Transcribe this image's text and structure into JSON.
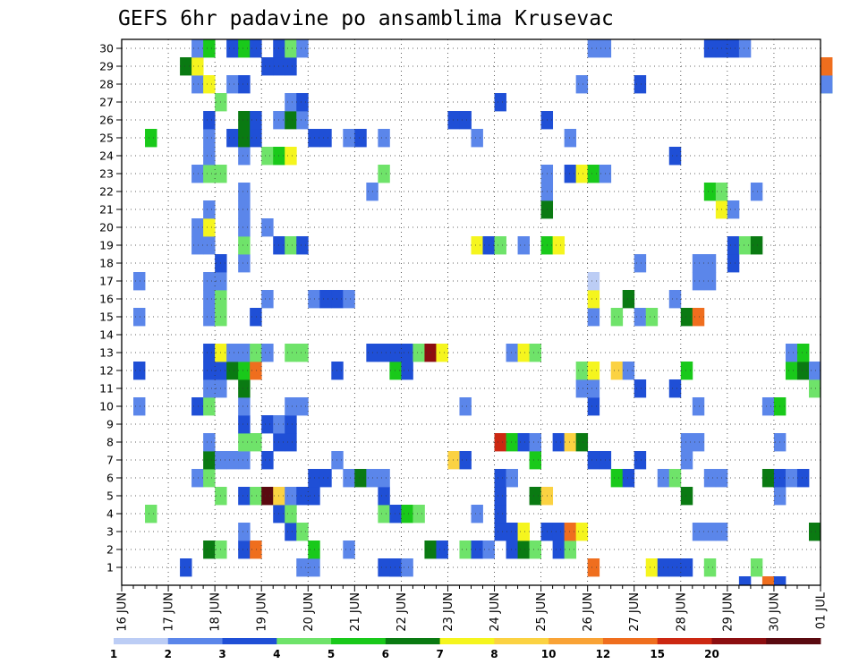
{
  "chart_data": {
    "type": "heatmap",
    "title": "GEFS 6hr padavine po ansamblima Krusevac",
    "xlabel": "",
    "ylabel": "",
    "y_ticks": [
      "1",
      "2",
      "3",
      "4",
      "5",
      "6",
      "7",
      "8",
      "9",
      "10",
      "11",
      "12",
      "13",
      "14",
      "15",
      "16",
      "17",
      "18",
      "19",
      "20",
      "21",
      "22",
      "23",
      "24",
      "25",
      "26",
      "27",
      "28",
      "29",
      "30"
    ],
    "x_ticks": [
      "16 JUN",
      "17 JUN",
      "18 JUN",
      "19 JUN",
      "20 JUN",
      "21 JUN",
      "22 JUN",
      "23 JUN",
      "24 JUN",
      "25 JUN",
      "26 JUN",
      "27 JUN",
      "28 JUN",
      "29 JUN",
      "30 JUN",
      "01 JUL"
    ],
    "grid": true,
    "steps_per_day": 4,
    "colorbar": {
      "labels": [
        "1",
        "2",
        "3",
        "4",
        "5",
        "6",
        "7",
        "8",
        "10",
        "12",
        "15",
        "20"
      ],
      "colors": [
        "#bccdf5",
        "#5b86ea",
        "#1f4fd6",
        "#6fe36a",
        "#19c91a",
        "#0a7a12",
        "#f5f51e",
        "#fbd242",
        "#f9a336",
        "#ef6e1e",
        "#cc2812",
        "#8c0e10",
        "#5a0a10"
      ]
    },
    "cells": [
      [
        5,
        1,
        2
      ],
      [
        15,
        1,
        1
      ],
      [
        16,
        1,
        1
      ],
      [
        22,
        1,
        2
      ],
      [
        23,
        1,
        2
      ],
      [
        23,
        1,
        2
      ],
      [
        24,
        1,
        1
      ],
      [
        40,
        1,
        9
      ],
      [
        45,
        1,
        6
      ],
      [
        46,
        1,
        2
      ],
      [
        47,
        1,
        2
      ],
      [
        48,
        1,
        2
      ],
      [
        50,
        1,
        3
      ],
      [
        54,
        1,
        3
      ],
      [
        7,
        2,
        5
      ],
      [
        8,
        2,
        3
      ],
      [
        10,
        2,
        2
      ],
      [
        11,
        2,
        9
      ],
      [
        16,
        2,
        4
      ],
      [
        19,
        2,
        1
      ],
      [
        26,
        2,
        5
      ],
      [
        27,
        2,
        2
      ],
      [
        29,
        2,
        3
      ],
      [
        30,
        2,
        2
      ],
      [
        31,
        2,
        1
      ],
      [
        33,
        2,
        2
      ],
      [
        34,
        2,
        5
      ],
      [
        35,
        2,
        3
      ],
      [
        37,
        2,
        2
      ],
      [
        38,
        2,
        3
      ],
      [
        10,
        3,
        1
      ],
      [
        14,
        3,
        2
      ],
      [
        15,
        3,
        3
      ],
      [
        32,
        3,
        2
      ],
      [
        33,
        3,
        2
      ],
      [
        34,
        3,
        6
      ],
      [
        36,
        3,
        2
      ],
      [
        37,
        3,
        2
      ],
      [
        38,
        3,
        9
      ],
      [
        39,
        3,
        6
      ],
      [
        49,
        3,
        1
      ],
      [
        50,
        3,
        1
      ],
      [
        51,
        3,
        1
      ],
      [
        59,
        3,
        5
      ],
      [
        2,
        4,
        3
      ],
      [
        13,
        4,
        2
      ],
      [
        14,
        4,
        3
      ],
      [
        22,
        4,
        3
      ],
      [
        23,
        4,
        2
      ],
      [
        24,
        4,
        4
      ],
      [
        25,
        4,
        3
      ],
      [
        30,
        4,
        1
      ],
      [
        32,
        4,
        2
      ],
      [
        8,
        5,
        3
      ],
      [
        10,
        5,
        2
      ],
      [
        11,
        5,
        3
      ],
      [
        12,
        5,
        12
      ],
      [
        13,
        5,
        7
      ],
      [
        14,
        5,
        1
      ],
      [
        15,
        5,
        2
      ],
      [
        16,
        5,
        2
      ],
      [
        22,
        5,
        2
      ],
      [
        32,
        5,
        2
      ],
      [
        35,
        5,
        5
      ],
      [
        36,
        5,
        7
      ],
      [
        48,
        5,
        5
      ],
      [
        56,
        5,
        1
      ],
      [
        6,
        6,
        1
      ],
      [
        7,
        6,
        3
      ],
      [
        16,
        6,
        2
      ],
      [
        17,
        6,
        2
      ],
      [
        19,
        6,
        1
      ],
      [
        20,
        6,
        5
      ],
      [
        21,
        6,
        1
      ],
      [
        22,
        6,
        1
      ],
      [
        32,
        6,
        2
      ],
      [
        33,
        6,
        1
      ],
      [
        42,
        6,
        4
      ],
      [
        43,
        6,
        2
      ],
      [
        46,
        6,
        1
      ],
      [
        47,
        6,
        3
      ],
      [
        50,
        6,
        1
      ],
      [
        51,
        6,
        1
      ],
      [
        55,
        6,
        5
      ],
      [
        56,
        6,
        2
      ],
      [
        57,
        6,
        1
      ],
      [
        58,
        6,
        2
      ],
      [
        7,
        7,
        5
      ],
      [
        8,
        7,
        1
      ],
      [
        9,
        7,
        1
      ],
      [
        10,
        7,
        1
      ],
      [
        12,
        7,
        2
      ],
      [
        18,
        7,
        1
      ],
      [
        28,
        7,
        7
      ],
      [
        29,
        7,
        2
      ],
      [
        35,
        7,
        4
      ],
      [
        40,
        7,
        2
      ],
      [
        41,
        7,
        2
      ],
      [
        44,
        7,
        2
      ],
      [
        48,
        7,
        1
      ],
      [
        7,
        8,
        1
      ],
      [
        10,
        8,
        3
      ],
      [
        11,
        8,
        3
      ],
      [
        13,
        8,
        2
      ],
      [
        14,
        8,
        2
      ],
      [
        32,
        8,
        10
      ],
      [
        33,
        8,
        4
      ],
      [
        34,
        8,
        2
      ],
      [
        35,
        8,
        1
      ],
      [
        37,
        8,
        2
      ],
      [
        38,
        8,
        7
      ],
      [
        39,
        8,
        5
      ],
      [
        48,
        8,
        1
      ],
      [
        49,
        8,
        1
      ],
      [
        56,
        8,
        1
      ],
      [
        10,
        9,
        2
      ],
      [
        12,
        9,
        2
      ],
      [
        13,
        9,
        1
      ],
      [
        14,
        9,
        2
      ],
      [
        1,
        10,
        1
      ],
      [
        6,
        10,
        2
      ],
      [
        7,
        10,
        3
      ],
      [
        10,
        10,
        1
      ],
      [
        14,
        10,
        1
      ],
      [
        15,
        10,
        1
      ],
      [
        29,
        10,
        1
      ],
      [
        40,
        10,
        2
      ],
      [
        49,
        10,
        1
      ],
      [
        55,
        10,
        1
      ],
      [
        56,
        10,
        4
      ],
      [
        7,
        11,
        1
      ],
      [
        8,
        11,
        1
      ],
      [
        10,
        11,
        5
      ],
      [
        39,
        11,
        1
      ],
      [
        40,
        11,
        1
      ],
      [
        44,
        11,
        2
      ],
      [
        47,
        11,
        2
      ],
      [
        59,
        11,
        3
      ],
      [
        1,
        12,
        2
      ],
      [
        7,
        12,
        2
      ],
      [
        8,
        12,
        2
      ],
      [
        9,
        12,
        5
      ],
      [
        10,
        12,
        4
      ],
      [
        11,
        12,
        9
      ],
      [
        18,
        12,
        2
      ],
      [
        23,
        12,
        4
      ],
      [
        24,
        12,
        2
      ],
      [
        39,
        12,
        3
      ],
      [
        40,
        12,
        6
      ],
      [
        42,
        12,
        7
      ],
      [
        43,
        12,
        1
      ],
      [
        48,
        12,
        4
      ],
      [
        57,
        12,
        4
      ],
      [
        58,
        12,
        5
      ],
      [
        59,
        12,
        1
      ],
      [
        7,
        13,
        2
      ],
      [
        8,
        13,
        6
      ],
      [
        9,
        13,
        1
      ],
      [
        10,
        13,
        1
      ],
      [
        11,
        13,
        3
      ],
      [
        12,
        13,
        1
      ],
      [
        14,
        13,
        3
      ],
      [
        15,
        13,
        3
      ],
      [
        21,
        13,
        2
      ],
      [
        22,
        13,
        2
      ],
      [
        23,
        13,
        2
      ],
      [
        24,
        13,
        2
      ],
      [
        25,
        13,
        3
      ],
      [
        26,
        13,
        11
      ],
      [
        27,
        13,
        6
      ],
      [
        33,
        13,
        1
      ],
      [
        34,
        13,
        6
      ],
      [
        35,
        13,
        3
      ],
      [
        57,
        13,
        1
      ],
      [
        58,
        13,
        4
      ],
      [
        1,
        15,
        1
      ],
      [
        7,
        15,
        1
      ],
      [
        8,
        15,
        3
      ],
      [
        11,
        15,
        2
      ],
      [
        40,
        15,
        1
      ],
      [
        42,
        15,
        3
      ],
      [
        44,
        15,
        1
      ],
      [
        45,
        15,
        3
      ],
      [
        48,
        15,
        5
      ],
      [
        49,
        15,
        9
      ],
      [
        7,
        16,
        1
      ],
      [
        8,
        16,
        3
      ],
      [
        12,
        16,
        1
      ],
      [
        16,
        16,
        1
      ],
      [
        17,
        16,
        2
      ],
      [
        18,
        16,
        2
      ],
      [
        19,
        16,
        1
      ],
      [
        40,
        16,
        6
      ],
      [
        43,
        16,
        5
      ],
      [
        47,
        16,
        1
      ],
      [
        1,
        17,
        1
      ],
      [
        7,
        17,
        1
      ],
      [
        8,
        17,
        1
      ],
      [
        40,
        17,
        0
      ],
      [
        49,
        17,
        1
      ],
      [
        50,
        17,
        1
      ],
      [
        8,
        18,
        2
      ],
      [
        10,
        18,
        1
      ],
      [
        44,
        18,
        1
      ],
      [
        49,
        18,
        1
      ],
      [
        50,
        18,
        1
      ],
      [
        52,
        18,
        2
      ],
      [
        6,
        19,
        1
      ],
      [
        7,
        19,
        1
      ],
      [
        10,
        19,
        3
      ],
      [
        13,
        19,
        2
      ],
      [
        14,
        19,
        3
      ],
      [
        15,
        19,
        2
      ],
      [
        30,
        19,
        6
      ],
      [
        31,
        19,
        2
      ],
      [
        32,
        19,
        3
      ],
      [
        34,
        19,
        1
      ],
      [
        36,
        19,
        4
      ],
      [
        37,
        19,
        6
      ],
      [
        52,
        19,
        2
      ],
      [
        53,
        19,
        3
      ],
      [
        54,
        19,
        5
      ],
      [
        6,
        20,
        1
      ],
      [
        7,
        20,
        6
      ],
      [
        10,
        20,
        1
      ],
      [
        12,
        20,
        1
      ],
      [
        7,
        21,
        1
      ],
      [
        10,
        21,
        1
      ],
      [
        36,
        21,
        5
      ],
      [
        51,
        21,
        6
      ],
      [
        52,
        21,
        1
      ],
      [
        10,
        22,
        1
      ],
      [
        21,
        22,
        1
      ],
      [
        36,
        22,
        1
      ],
      [
        50,
        22,
        4
      ],
      [
        51,
        22,
        3
      ],
      [
        54,
        22,
        1
      ],
      [
        6,
        23,
        1
      ],
      [
        7,
        23,
        3
      ],
      [
        8,
        23,
        3
      ],
      [
        22,
        23,
        3
      ],
      [
        36,
        23,
        1
      ],
      [
        38,
        23,
        2
      ],
      [
        39,
        23,
        6
      ],
      [
        40,
        23,
        4
      ],
      [
        41,
        23,
        1
      ],
      [
        7,
        24,
        1
      ],
      [
        10,
        24,
        1
      ],
      [
        12,
        24,
        3
      ],
      [
        13,
        24,
        4
      ],
      [
        14,
        24,
        6
      ],
      [
        47,
        24,
        2
      ],
      [
        2,
        25,
        4
      ],
      [
        7,
        25,
        1
      ],
      [
        9,
        25,
        2
      ],
      [
        10,
        25,
        5
      ],
      [
        11,
        25,
        2
      ],
      [
        16,
        25,
        2
      ],
      [
        17,
        25,
        2
      ],
      [
        19,
        25,
        1
      ],
      [
        20,
        25,
        2
      ],
      [
        22,
        25,
        1
      ],
      [
        30,
        25,
        1
      ],
      [
        38,
        25,
        1
      ],
      [
        7,
        26,
        2
      ],
      [
        10,
        26,
        5
      ],
      [
        11,
        26,
        2
      ],
      [
        13,
        26,
        1
      ],
      [
        14,
        26,
        5
      ],
      [
        15,
        26,
        1
      ],
      [
        28,
        26,
        2
      ],
      [
        29,
        26,
        2
      ],
      [
        36,
        26,
        2
      ],
      [
        8,
        27,
        3
      ],
      [
        14,
        27,
        1
      ],
      [
        15,
        27,
        2
      ],
      [
        32,
        27,
        2
      ],
      [
        6,
        28,
        1
      ],
      [
        7,
        28,
        6
      ],
      [
        9,
        28,
        1
      ],
      [
        10,
        28,
        2
      ],
      [
        39,
        28,
        1
      ],
      [
        44,
        28,
        2
      ],
      [
        60,
        28,
        3
      ],
      [
        60,
        28,
        1
      ],
      [
        5,
        29,
        5
      ],
      [
        6,
        29,
        6
      ],
      [
        12,
        29,
        2
      ],
      [
        13,
        29,
        2
      ],
      [
        14,
        29,
        2
      ],
      [
        60,
        29,
        9
      ],
      [
        6,
        30,
        1
      ],
      [
        7,
        30,
        4
      ],
      [
        9,
        30,
        2
      ],
      [
        10,
        30,
        4
      ],
      [
        11,
        30,
        2
      ],
      [
        13,
        30,
        2
      ],
      [
        14,
        30,
        3
      ],
      [
        15,
        30,
        1
      ],
      [
        40,
        30,
        1
      ],
      [
        41,
        30,
        1
      ],
      [
        50,
        30,
        2
      ],
      [
        51,
        30,
        2
      ],
      [
        52,
        30,
        2
      ],
      [
        53,
        30,
        1
      ],
      [
        53,
        0,
        2
      ],
      [
        55,
        0,
        9
      ],
      [
        56,
        0,
        2
      ]
    ]
  }
}
